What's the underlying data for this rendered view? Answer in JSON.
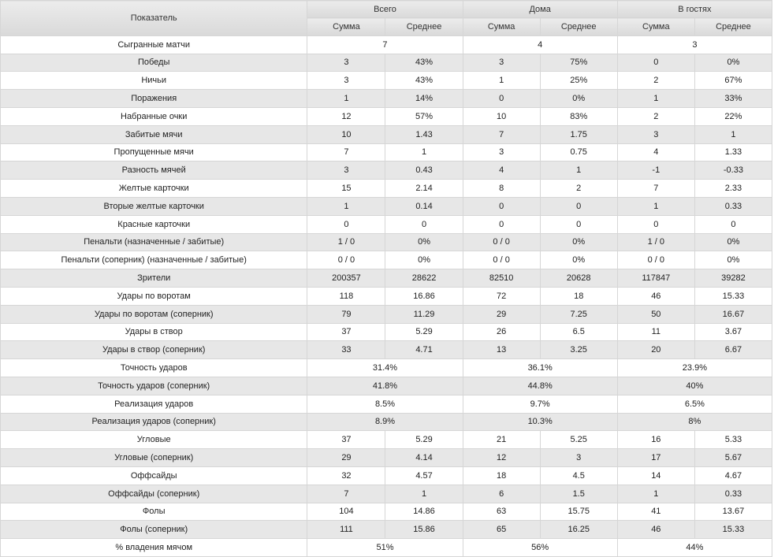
{
  "header": {
    "indicator": "Показатель",
    "groups": [
      "Всего",
      "Дома",
      "В гостях"
    ],
    "sum": "Сумма",
    "avg": "Среднее"
  },
  "rows": [
    {
      "label": "Сыгранные матчи",
      "merged": true,
      "values": [
        "7",
        "4",
        "3"
      ]
    },
    {
      "label": "Победы",
      "merged": false,
      "values": [
        "3",
        "43%",
        "3",
        "75%",
        "0",
        "0%"
      ]
    },
    {
      "label": "Ничьи",
      "merged": false,
      "values": [
        "3",
        "43%",
        "1",
        "25%",
        "2",
        "67%"
      ]
    },
    {
      "label": "Поражения",
      "merged": false,
      "values": [
        "1",
        "14%",
        "0",
        "0%",
        "1",
        "33%"
      ]
    },
    {
      "label": "Набранные очки",
      "merged": false,
      "values": [
        "12",
        "57%",
        "10",
        "83%",
        "2",
        "22%"
      ]
    },
    {
      "label": "Забитые мячи",
      "merged": false,
      "values": [
        "10",
        "1.43",
        "7",
        "1.75",
        "3",
        "1"
      ]
    },
    {
      "label": "Пропущенные мячи",
      "merged": false,
      "values": [
        "7",
        "1",
        "3",
        "0.75",
        "4",
        "1.33"
      ]
    },
    {
      "label": "Разность мячей",
      "merged": false,
      "values": [
        "3",
        "0.43",
        "4",
        "1",
        "-1",
        "-0.33"
      ]
    },
    {
      "label": "Желтые карточки",
      "merged": false,
      "values": [
        "15",
        "2.14",
        "8",
        "2",
        "7",
        "2.33"
      ]
    },
    {
      "label": "Вторые желтые карточки",
      "merged": false,
      "values": [
        "1",
        "0.14",
        "0",
        "0",
        "1",
        "0.33"
      ]
    },
    {
      "label": "Красные карточки",
      "merged": false,
      "values": [
        "0",
        "0",
        "0",
        "0",
        "0",
        "0"
      ]
    },
    {
      "label": "Пенальти (назначенные / забитые)",
      "merged": false,
      "values": [
        "1 / 0",
        "0%",
        "0 / 0",
        "0%",
        "1 / 0",
        "0%"
      ]
    },
    {
      "label": "Пенальти (соперник) (назначенные / забитые)",
      "merged": false,
      "values": [
        "0 / 0",
        "0%",
        "0 / 0",
        "0%",
        "0 / 0",
        "0%"
      ]
    },
    {
      "label": "Зрители",
      "merged": false,
      "values": [
        "200357",
        "28622",
        "82510",
        "20628",
        "117847",
        "39282"
      ]
    },
    {
      "label": "Удары по воротам",
      "merged": false,
      "values": [
        "118",
        "16.86",
        "72",
        "18",
        "46",
        "15.33"
      ]
    },
    {
      "label": "Удары по воротам (соперник)",
      "merged": false,
      "values": [
        "79",
        "11.29",
        "29",
        "7.25",
        "50",
        "16.67"
      ]
    },
    {
      "label": "Удары в створ",
      "merged": false,
      "values": [
        "37",
        "5.29",
        "26",
        "6.5",
        "11",
        "3.67"
      ]
    },
    {
      "label": "Удары в створ (соперник)",
      "merged": false,
      "values": [
        "33",
        "4.71",
        "13",
        "3.25",
        "20",
        "6.67"
      ]
    },
    {
      "label": "Точность ударов",
      "merged": true,
      "values": [
        "31.4%",
        "36.1%",
        "23.9%"
      ]
    },
    {
      "label": "Точность ударов (соперник)",
      "merged": true,
      "values": [
        "41.8%",
        "44.8%",
        "40%"
      ]
    },
    {
      "label": "Реализация ударов",
      "merged": true,
      "values": [
        "8.5%",
        "9.7%",
        "6.5%"
      ]
    },
    {
      "label": "Реализация ударов (соперник)",
      "merged": true,
      "values": [
        "8.9%",
        "10.3%",
        "8%"
      ]
    },
    {
      "label": "Угловые",
      "merged": false,
      "values": [
        "37",
        "5.29",
        "21",
        "5.25",
        "16",
        "5.33"
      ]
    },
    {
      "label": "Угловые (соперник)",
      "merged": false,
      "values": [
        "29",
        "4.14",
        "12",
        "3",
        "17",
        "5.67"
      ]
    },
    {
      "label": "Оффсайды",
      "merged": false,
      "values": [
        "32",
        "4.57",
        "18",
        "4.5",
        "14",
        "4.67"
      ]
    },
    {
      "label": "Оффсайды (соперник)",
      "merged": false,
      "values": [
        "7",
        "1",
        "6",
        "1.5",
        "1",
        "0.33"
      ]
    },
    {
      "label": "Фолы",
      "merged": false,
      "values": [
        "104",
        "14.86",
        "63",
        "15.75",
        "41",
        "13.67"
      ]
    },
    {
      "label": "Фолы (соперник)",
      "merged": false,
      "values": [
        "111",
        "15.86",
        "65",
        "16.25",
        "46",
        "15.33"
      ]
    },
    {
      "label": "% владения мячом",
      "merged": true,
      "values": [
        "51%",
        "56%",
        "44%"
      ]
    }
  ]
}
